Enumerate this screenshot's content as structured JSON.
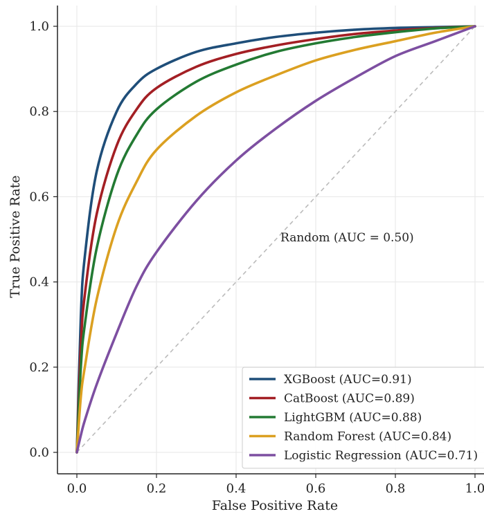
{
  "chart_data": {
    "type": "line",
    "title": "",
    "xlabel": "False Positive Rate",
    "ylabel": "True Positive Rate",
    "xlim": [
      -0.05,
      1.0
    ],
    "ylim": [
      -0.05,
      1.05
    ],
    "x_ticks": [
      0.0,
      0.2,
      0.4,
      0.6,
      0.8,
      1.0
    ],
    "y_ticks": [
      0.0,
      0.2,
      0.4,
      0.6,
      0.8,
      1.0
    ],
    "x_tick_labels": [
      "0.0",
      "0.2",
      "0.4",
      "0.6",
      "0.8",
      "1.0"
    ],
    "y_tick_labels": [
      "0.0",
      "0.2",
      "0.4",
      "0.6",
      "0.8",
      "1.0"
    ],
    "grid": true,
    "legend_position": "lower-right",
    "x": [
      0.0,
      0.01,
      0.02,
      0.05,
      0.1,
      0.15,
      0.2,
      0.3,
      0.4,
      0.5,
      0.6,
      0.7,
      0.8,
      0.9,
      1.0
    ],
    "series": [
      {
        "name": "XGBoost (AUC=0.91)",
        "color": "#1f4e79",
        "values": [
          0.0,
          0.32,
          0.46,
          0.66,
          0.8,
          0.865,
          0.9,
          0.94,
          0.96,
          0.975,
          0.985,
          0.992,
          0.996,
          0.998,
          1.0
        ]
      },
      {
        "name": "CatBoost (AUC=0.89)",
        "color": "#a31f24",
        "values": [
          0.0,
          0.25,
          0.37,
          0.56,
          0.72,
          0.805,
          0.855,
          0.905,
          0.935,
          0.955,
          0.97,
          0.982,
          0.99,
          0.996,
          1.0
        ]
      },
      {
        "name": "LightGBM (AUC=0.88)",
        "color": "#237a33",
        "values": [
          0.0,
          0.2,
          0.3,
          0.48,
          0.65,
          0.745,
          0.805,
          0.87,
          0.91,
          0.94,
          0.96,
          0.975,
          0.986,
          0.995,
          1.0
        ]
      },
      {
        "name": "Random Forest (AUC=0.84)",
        "color": "#dba021",
        "values": [
          0.0,
          0.13,
          0.2,
          0.36,
          0.53,
          0.635,
          0.71,
          0.79,
          0.845,
          0.885,
          0.92,
          0.945,
          0.965,
          0.985,
          1.0
        ]
      },
      {
        "name": "Logistic Regression (AUC=0.71)",
        "color": "#7d4fa1",
        "values": [
          0.0,
          0.04,
          0.075,
          0.16,
          0.28,
          0.39,
          0.47,
          0.59,
          0.685,
          0.76,
          0.825,
          0.88,
          0.93,
          0.965,
          1.0
        ]
      }
    ],
    "baseline": {
      "label": "Random (AUC = 0.50)",
      "x": [
        0.0,
        1.0
      ],
      "y": [
        0.0,
        1.0
      ],
      "color": "#bbbbbb"
    }
  }
}
